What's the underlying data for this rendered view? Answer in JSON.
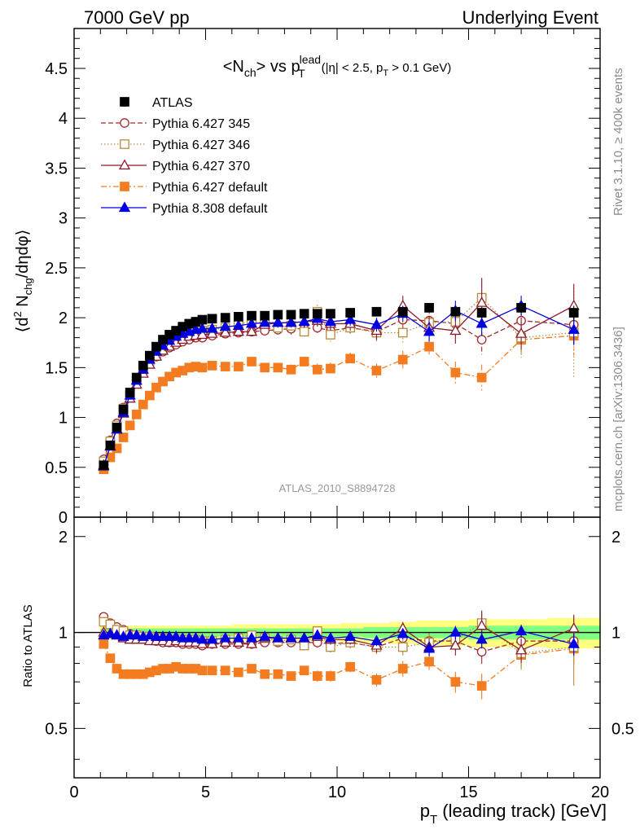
{
  "header": {
    "left": "7000 GeV pp",
    "right": "Underlying Event"
  },
  "side": {
    "rivet": "Rivet 3.1.10, ≥ 400k events",
    "mcplots": "mcplots.cern.ch [arXiv:1306.3436]"
  },
  "chart_data": [
    {
      "type": "scatter",
      "panel": "main",
      "title": "<N_ch> vs p_T^lead (|η| < 2.5, p_T > 0.1 GeV)",
      "ylabel": "⟨d² N_chg/dηdφ⟩",
      "watermark": "ATLAS_2010_S8894728",
      "xlim": [
        0,
        20
      ],
      "ylim": [
        0,
        4.9
      ],
      "yticks": [
        "0",
        "0.5",
        "1",
        "1.5",
        "2",
        "2.5",
        "3",
        "3.5",
        "4",
        "4.5"
      ],
      "legend_position": "top-left",
      "x": [
        1.125,
        1.375,
        1.625,
        1.875,
        2.125,
        2.375,
        2.625,
        2.875,
        3.125,
        3.375,
        3.625,
        3.875,
        4.125,
        4.375,
        4.625,
        4.875,
        5.25,
        5.75,
        6.25,
        6.75,
        7.25,
        7.75,
        8.25,
        8.75,
        9.25,
        9.75,
        10.5,
        11.5,
        12.5,
        13.5,
        14.5,
        15.5,
        17.0,
        19.0
      ],
      "series": [
        {
          "name": "ATLAS",
          "color": "#000000",
          "marker": "filled-square",
          "line": "none",
          "values": [
            0.52,
            0.72,
            0.9,
            1.08,
            1.25,
            1.4,
            1.52,
            1.62,
            1.71,
            1.78,
            1.83,
            1.87,
            1.91,
            1.94,
            1.96,
            1.98,
            1.99,
            2.0,
            2.01,
            2.02,
            2.02,
            2.03,
            2.03,
            2.04,
            2.04,
            2.04,
            2.05,
            2.06,
            2.06,
            2.1,
            2.06,
            2.05,
            2.1,
            2.05
          ],
          "errors": [
            0.01,
            0.01,
            0.01,
            0.01,
            0.01,
            0.01,
            0.01,
            0.01,
            0.01,
            0.01,
            0.01,
            0.01,
            0.01,
            0.01,
            0.01,
            0.01,
            0.01,
            0.01,
            0.01,
            0.01,
            0.01,
            0.01,
            0.01,
            0.01,
            0.01,
            0.01,
            0.02,
            0.02,
            0.03,
            0.04,
            0.04,
            0.05,
            0.05,
            0.07
          ]
        },
        {
          "name": "Pythia 6.427 345",
          "color": "#a52a2a",
          "marker": "open-circle",
          "line": "dashed",
          "values": [
            0.58,
            0.77,
            0.94,
            1.1,
            1.24,
            1.37,
            1.47,
            1.55,
            1.61,
            1.66,
            1.7,
            1.73,
            1.76,
            1.78,
            1.8,
            1.8,
            1.82,
            1.84,
            1.85,
            1.86,
            1.87,
            1.88,
            1.89,
            1.89,
            1.9,
            1.87,
            1.9,
            1.86,
            1.98,
            1.97,
            1.94,
            1.78,
            1.97,
            1.93
          ],
          "errors": [
            0.01,
            0.01,
            0.01,
            0.01,
            0.01,
            0.01,
            0.02,
            0.02,
            0.02,
            0.02,
            0.02,
            0.02,
            0.02,
            0.02,
            0.03,
            0.03,
            0.03,
            0.03,
            0.04,
            0.04,
            0.05,
            0.05,
            0.06,
            0.06,
            0.07,
            0.07,
            0.07,
            0.09,
            0.1,
            0.12,
            0.13,
            0.15,
            0.16,
            0.2
          ]
        },
        {
          "name": "Pythia 6.427 346",
          "color": "#b8893c",
          "marker": "open-square",
          "line": "dotted",
          "values": [
            0.56,
            0.76,
            0.92,
            1.09,
            1.23,
            1.37,
            1.48,
            1.57,
            1.64,
            1.7,
            1.74,
            1.78,
            1.82,
            1.84,
            1.86,
            1.87,
            1.88,
            1.9,
            1.93,
            1.97,
            1.94,
            1.9,
            1.92,
            1.86,
            2.06,
            1.83,
            1.9,
            1.85,
            1.85,
            1.95,
            1.96,
            2.2,
            1.8,
            1.85
          ],
          "errors": [
            0.01,
            0.01,
            0.01,
            0.01,
            0.01,
            0.01,
            0.02,
            0.02,
            0.02,
            0.02,
            0.02,
            0.02,
            0.03,
            0.03,
            0.03,
            0.03,
            0.03,
            0.04,
            0.04,
            0.05,
            0.05,
            0.05,
            0.06,
            0.06,
            0.07,
            0.07,
            0.08,
            0.09,
            0.11,
            0.13,
            0.14,
            0.18,
            0.2,
            0.45
          ]
        },
        {
          "name": "Pythia 6.427 370",
          "color": "#8b1a2a",
          "marker": "open-triangle",
          "line": "solid",
          "values": [
            0.52,
            0.71,
            0.88,
            1.04,
            1.19,
            1.33,
            1.44,
            1.53,
            1.61,
            1.67,
            1.71,
            1.75,
            1.78,
            1.81,
            1.82,
            1.83,
            1.84,
            1.85,
            1.86,
            1.86,
            1.93,
            1.95,
            1.95,
            1.96,
            1.97,
            1.94,
            1.94,
            1.87,
            2.12,
            1.9,
            1.87,
            2.15,
            1.84,
            2.12
          ],
          "errors": [
            0.01,
            0.01,
            0.01,
            0.01,
            0.01,
            0.01,
            0.02,
            0.02,
            0.02,
            0.02,
            0.02,
            0.02,
            0.02,
            0.03,
            0.03,
            0.03,
            0.03,
            0.03,
            0.04,
            0.04,
            0.04,
            0.05,
            0.05,
            0.06,
            0.06,
            0.07,
            0.07,
            0.09,
            0.1,
            0.12,
            0.13,
            0.25,
            0.16,
            0.22
          ]
        },
        {
          "name": "Pythia 6.427 default",
          "color": "#f47c20",
          "marker": "filled-square",
          "line": "dashdot",
          "values": [
            0.48,
            0.6,
            0.69,
            0.8,
            0.92,
            1.03,
            1.13,
            1.22,
            1.3,
            1.36,
            1.41,
            1.45,
            1.47,
            1.5,
            1.51,
            1.5,
            1.52,
            1.51,
            1.51,
            1.56,
            1.5,
            1.5,
            1.48,
            1.56,
            1.48,
            1.49,
            1.59,
            1.47,
            1.58,
            1.71,
            1.45,
            1.4,
            1.78,
            1.82
          ],
          "errors": [
            0.01,
            0.01,
            0.01,
            0.01,
            0.01,
            0.01,
            0.01,
            0.02,
            0.02,
            0.02,
            0.02,
            0.02,
            0.02,
            0.02,
            0.02,
            0.03,
            0.03,
            0.03,
            0.03,
            0.04,
            0.04,
            0.04,
            0.05,
            0.05,
            0.06,
            0.06,
            0.06,
            0.07,
            0.09,
            0.1,
            0.11,
            0.13,
            0.15,
            0.2
          ]
        },
        {
          "name": "Pythia 8.308 default",
          "color": "#0000e0",
          "marker": "filled-triangle",
          "line": "solid",
          "values": [
            0.51,
            0.71,
            0.88,
            1.05,
            1.22,
            1.37,
            1.48,
            1.58,
            1.66,
            1.72,
            1.77,
            1.81,
            1.84,
            1.86,
            1.88,
            1.89,
            1.89,
            1.91,
            1.92,
            1.94,
            1.95,
            1.95,
            1.95,
            1.96,
            1.99,
            1.96,
            1.98,
            1.93,
            2.04,
            1.86,
            2.07,
            1.94,
            2.12,
            1.88
          ],
          "errors": [
            0.01,
            0.01,
            0.01,
            0.01,
            0.01,
            0.01,
            0.01,
            0.02,
            0.02,
            0.02,
            0.02,
            0.02,
            0.02,
            0.02,
            0.02,
            0.02,
            0.03,
            0.03,
            0.03,
            0.03,
            0.04,
            0.04,
            0.04,
            0.05,
            0.05,
            0.06,
            0.06,
            0.07,
            0.08,
            0.1,
            0.1,
            0.12,
            0.1,
            0.15
          ]
        }
      ]
    },
    {
      "type": "scatter",
      "panel": "ratio",
      "ylabel": "Ratio to ATLAS",
      "xlabel": "p_T (leading track) [GeV]",
      "xlim": [
        0,
        20
      ],
      "ylim": [
        0.35,
        2.3
      ],
      "xticks": [
        "0",
        "5",
        "10",
        "15",
        "20"
      ],
      "yticks": [
        "0.5",
        "1",
        "2"
      ],
      "reference_line": 1,
      "bands": [
        {
          "name": "total uncertainty",
          "color": "#ffff80",
          "lower": [
            0.95,
            0.95,
            0.95,
            0.95,
            0.95,
            0.95,
            0.95,
            0.95,
            0.95,
            0.95,
            0.95,
            0.95,
            0.95,
            0.95,
            0.95,
            0.95,
            0.95,
            0.95,
            0.94,
            0.94,
            0.94,
            0.94,
            0.94,
            0.94,
            0.94,
            0.94,
            0.93,
            0.93,
            0.92,
            0.91,
            0.91,
            0.9,
            0.9,
            0.89
          ],
          "upper": [
            1.05,
            1.05,
            1.05,
            1.05,
            1.05,
            1.05,
            1.05,
            1.05,
            1.05,
            1.05,
            1.05,
            1.05,
            1.05,
            1.05,
            1.05,
            1.05,
            1.05,
            1.05,
            1.06,
            1.06,
            1.06,
            1.06,
            1.06,
            1.06,
            1.06,
            1.06,
            1.07,
            1.07,
            1.08,
            1.09,
            1.09,
            1.1,
            1.1,
            1.11
          ]
        },
        {
          "name": "statistical uncertainty",
          "color": "#80ff80",
          "lower": [
            0.97,
            0.97,
            0.97,
            0.97,
            0.97,
            0.97,
            0.97,
            0.97,
            0.97,
            0.97,
            0.97,
            0.97,
            0.97,
            0.97,
            0.97,
            0.97,
            0.97,
            0.97,
            0.97,
            0.97,
            0.97,
            0.97,
            0.97,
            0.97,
            0.97,
            0.97,
            0.97,
            0.96,
            0.96,
            0.96,
            0.96,
            0.95,
            0.95,
            0.95
          ],
          "upper": [
            1.03,
            1.03,
            1.03,
            1.03,
            1.03,
            1.03,
            1.03,
            1.03,
            1.03,
            1.03,
            1.03,
            1.03,
            1.03,
            1.03,
            1.03,
            1.03,
            1.03,
            1.03,
            1.03,
            1.03,
            1.03,
            1.03,
            1.03,
            1.03,
            1.03,
            1.03,
            1.03,
            1.04,
            1.04,
            1.04,
            1.04,
            1.05,
            1.05,
            1.05
          ]
        }
      ],
      "series": [
        {
          "name": "Pythia 6.427 345",
          "values": [
            1.12,
            1.07,
            1.04,
            1.02,
            0.99,
            0.98,
            0.97,
            0.96,
            0.94,
            0.93,
            0.93,
            0.93,
            0.92,
            0.92,
            0.92,
            0.91,
            0.92,
            0.92,
            0.92,
            0.92,
            0.93,
            0.93,
            0.93,
            0.93,
            0.93,
            0.92,
            0.93,
            0.9,
            0.96,
            0.94,
            0.94,
            0.87,
            0.94,
            0.94
          ]
        },
        {
          "name": "Pythia 6.427 346",
          "values": [
            1.08,
            1.06,
            1.02,
            1.01,
            0.98,
            0.98,
            0.97,
            0.97,
            0.96,
            0.96,
            0.95,
            0.95,
            0.95,
            0.95,
            0.95,
            0.94,
            0.94,
            0.95,
            0.96,
            0.98,
            0.96,
            0.94,
            0.95,
            0.91,
            1.01,
            0.9,
            0.93,
            0.9,
            0.9,
            0.93,
            0.95,
            1.07,
            0.86,
            0.9
          ]
        },
        {
          "name": "Pythia 6.427 370",
          "values": [
            1.0,
            0.99,
            0.98,
            0.96,
            0.95,
            0.95,
            0.95,
            0.94,
            0.94,
            0.94,
            0.93,
            0.94,
            0.93,
            0.93,
            0.93,
            0.92,
            0.92,
            0.93,
            0.93,
            0.92,
            0.96,
            0.96,
            0.96,
            0.96,
            0.97,
            0.95,
            0.95,
            0.91,
            1.03,
            0.9,
            0.91,
            1.05,
            0.88,
            1.03
          ]
        },
        {
          "name": "Pythia 6.427 default",
          "values": [
            0.92,
            0.83,
            0.77,
            0.74,
            0.74,
            0.74,
            0.74,
            0.75,
            0.76,
            0.77,
            0.77,
            0.78,
            0.77,
            0.77,
            0.77,
            0.76,
            0.76,
            0.76,
            0.75,
            0.77,
            0.74,
            0.74,
            0.73,
            0.76,
            0.73,
            0.73,
            0.78,
            0.71,
            0.77,
            0.81,
            0.7,
            0.68,
            0.85,
            0.89
          ]
        },
        {
          "name": "Pythia 8.308 default",
          "values": [
            0.98,
            0.99,
            0.98,
            0.97,
            0.98,
            0.98,
            0.97,
            0.98,
            0.97,
            0.97,
            0.97,
            0.97,
            0.96,
            0.96,
            0.96,
            0.95,
            0.95,
            0.96,
            0.96,
            0.96,
            0.97,
            0.96,
            0.96,
            0.96,
            0.98,
            0.96,
            0.97,
            0.94,
            0.99,
            0.89,
            1.0,
            0.95,
            1.01,
            0.92
          ]
        }
      ]
    }
  ]
}
